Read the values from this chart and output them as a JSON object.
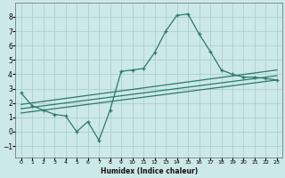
{
  "title": "",
  "xlabel": "Humidex (Indice chaleur)",
  "bg_color": "#cce8e8",
  "line_color": "#2a7a6a",
  "grid_color": "#aacfcf",
  "xlim": [
    -0.5,
    23.5
  ],
  "ylim": [
    -1.8,
    9.0
  ],
  "xticks": [
    0,
    1,
    2,
    3,
    4,
    5,
    6,
    7,
    8,
    9,
    10,
    11,
    12,
    13,
    14,
    15,
    16,
    17,
    18,
    19,
    20,
    21,
    22,
    23
  ],
  "yticks": [
    -1,
    0,
    1,
    2,
    3,
    4,
    5,
    6,
    7,
    8
  ],
  "main_line_x": [
    0,
    1,
    2,
    3,
    4,
    5,
    6,
    7,
    8,
    9,
    10,
    11,
    12,
    13,
    14,
    15,
    16,
    17,
    18,
    19,
    20,
    21,
    22,
    23
  ],
  "main_line_y": [
    2.7,
    1.8,
    1.5,
    1.2,
    1.1,
    0.0,
    0.7,
    -0.6,
    1.5,
    4.2,
    4.3,
    4.4,
    5.5,
    7.0,
    8.1,
    8.2,
    6.8,
    5.6,
    4.3,
    4.0,
    3.8,
    3.8,
    3.7,
    3.6
  ],
  "smooth_line1_x": [
    0,
    23
  ],
  "smooth_line1_y": [
    1.9,
    4.3
  ],
  "smooth_line2_x": [
    0,
    23
  ],
  "smooth_line2_y": [
    1.6,
    3.9
  ],
  "smooth_line3_x": [
    0,
    23
  ],
  "smooth_line3_y": [
    1.3,
    3.6
  ]
}
